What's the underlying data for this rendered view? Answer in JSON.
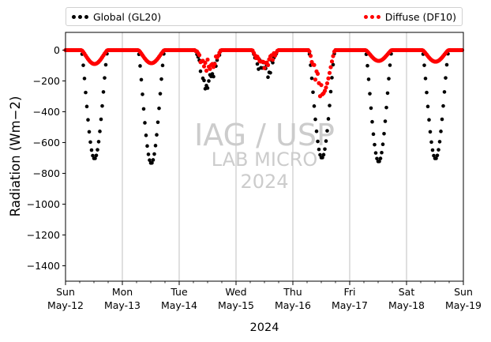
{
  "chart_data": {
    "type": "scatter",
    "title": "",
    "xlabel": "2024",
    "ylabel": "Radiation (Wm−2)",
    "ylim": [
      -1500,
      115
    ],
    "yticks": [
      0,
      -200,
      -400,
      -600,
      -800,
      -1000,
      -1200,
      -1400
    ],
    "xlim_days": [
      "2024-05-12",
      "2024-05-19"
    ],
    "xticks": [
      {
        "day": "Sun",
        "date": "May-12"
      },
      {
        "day": "Mon",
        "date": "May-13"
      },
      {
        "day": "Tue",
        "date": "May-14"
      },
      {
        "day": "Wed",
        "date": "May-15"
      },
      {
        "day": "Thu",
        "date": "May-16"
      },
      {
        "day": "Fri",
        "date": "May-17"
      },
      {
        "day": "Sat",
        "date": "May-18"
      },
      {
        "day": "Sun",
        "date": "May-19"
      }
    ],
    "grid": "vertical",
    "legend_position": "top, above plot",
    "watermark": {
      "line1": "IAG / USP",
      "line2": "LAB MICRO",
      "line3": "2024"
    },
    "series": [
      {
        "name": "Global (GL20)",
        "color": "#000000",
        "daily_peak": [
          -705,
          -735,
          -275,
          -200,
          -700,
          -725,
          -705
        ],
        "daily_profile": [
          "smooth",
          "smooth",
          "cloudy",
          "cloudy",
          "smooth",
          "smooth",
          "smooth"
        ]
      },
      {
        "name": "Diffuse (DF10)",
        "color": "#ff0000",
        "daily_peak": [
          -90,
          -85,
          -150,
          -140,
          -320,
          -70,
          -75
        ],
        "daily_profile": [
          "smooth",
          "smooth",
          "cloudy",
          "cloudy",
          "broken",
          "smooth",
          "smooth"
        ]
      }
    ]
  }
}
